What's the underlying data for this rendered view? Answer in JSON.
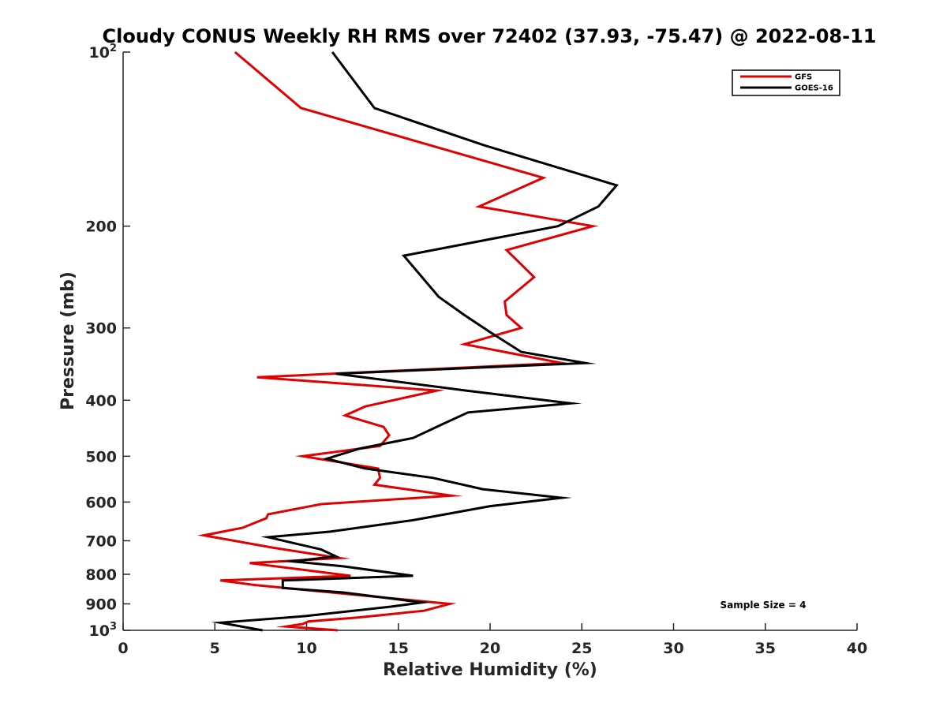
{
  "chart_data": {
    "type": "line",
    "title": "Cloudy CONUS Weekly RH RMS over 72402 (37.93, -75.47) @ 2022-08-11",
    "xlabel": "Relative Humidity (%)",
    "ylabel": "Pressure (mb)",
    "xlim": [
      0,
      40
    ],
    "ylim": [
      1000,
      100
    ],
    "yscale": "log",
    "ydirection": "reverse",
    "xticks": [
      0,
      5,
      10,
      15,
      20,
      25,
      30,
      35,
      40
    ],
    "yticks": [
      {
        "value": 100,
        "base": "10",
        "exp": "2"
      },
      {
        "value": 200,
        "label": "200"
      },
      {
        "value": 300,
        "label": "300"
      },
      {
        "value": 400,
        "label": "400"
      },
      {
        "value": 500,
        "label": "500"
      },
      {
        "value": 600,
        "label": "600"
      },
      {
        "value": 700,
        "label": "700"
      },
      {
        "value": 800,
        "label": "800"
      },
      {
        "value": 900,
        "label": "900"
      },
      {
        "value": 1000,
        "base": "10",
        "exp": "3"
      }
    ],
    "legend_position": "top-right",
    "annotation": "Sample Size = 4",
    "series": [
      {
        "name": "GFS",
        "color": "#e00000",
        "points": [
          [
            6.1,
            100
          ],
          [
            9.7,
            125
          ],
          [
            22.9,
            165
          ],
          [
            19.4,
            185
          ],
          [
            25.6,
            200
          ],
          [
            20.9,
            220
          ],
          [
            22.4,
            245
          ],
          [
            20.8,
            270
          ],
          [
            20.9,
            285
          ],
          [
            21.7,
            300
          ],
          [
            18.6,
            320
          ],
          [
            23.9,
            345
          ],
          [
            7.3,
            365
          ],
          [
            17.1,
            385
          ],
          [
            13.2,
            410
          ],
          [
            12.1,
            425
          ],
          [
            14.2,
            445
          ],
          [
            14.5,
            460
          ],
          [
            14.0,
            480
          ],
          [
            9.8,
            500
          ],
          [
            13.9,
            525
          ],
          [
            14.0,
            545
          ],
          [
            13.7,
            560
          ],
          [
            17.9,
            585
          ],
          [
            10.8,
            605
          ],
          [
            7.9,
            630
          ],
          [
            7.8,
            640
          ],
          [
            6.5,
            665
          ],
          [
            4.4,
            685
          ],
          [
            8.2,
            720
          ],
          [
            11.8,
            750
          ],
          [
            6.9,
            765
          ],
          [
            12.4,
            805
          ],
          [
            5.3,
            820
          ],
          [
            7.2,
            835
          ],
          [
            17.8,
            900
          ],
          [
            16.4,
            925
          ],
          [
            12.8,
            950
          ],
          [
            10.1,
            965
          ],
          [
            9.8,
            975
          ],
          [
            8.9,
            985
          ],
          [
            10.2,
            992
          ],
          [
            11.7,
            1000
          ]
        ]
      },
      {
        "name": "GOES-16",
        "color": "#000000",
        "points": [
          [
            11.4,
            100
          ],
          [
            13.7,
            125
          ],
          [
            19.7,
            145
          ],
          [
            26.9,
            170
          ],
          [
            25.9,
            185
          ],
          [
            23.7,
            200
          ],
          [
            15.3,
            225
          ],
          [
            17.2,
            265
          ],
          [
            18.6,
            285
          ],
          [
            20.0,
            305
          ],
          [
            21.7,
            330
          ],
          [
            25.2,
            345
          ],
          [
            11.6,
            360
          ],
          [
            18.7,
            385
          ],
          [
            24.4,
            405
          ],
          [
            18.8,
            420
          ],
          [
            17.4,
            440
          ],
          [
            15.8,
            465
          ],
          [
            12.9,
            485
          ],
          [
            11.1,
            505
          ],
          [
            13.2,
            525
          ],
          [
            16.9,
            545
          ],
          [
            19.6,
            570
          ],
          [
            23.9,
            590
          ],
          [
            20.0,
            610
          ],
          [
            15.8,
            645
          ],
          [
            11.3,
            675
          ],
          [
            7.9,
            690
          ],
          [
            10.8,
            725
          ],
          [
            11.6,
            745
          ],
          [
            9.2,
            760
          ],
          [
            12.0,
            775
          ],
          [
            15.8,
            805
          ],
          [
            8.7,
            820
          ],
          [
            8.7,
            845
          ],
          [
            12.0,
            860
          ],
          [
            16.3,
            895
          ],
          [
            14.6,
            910
          ],
          [
            9.9,
            945
          ],
          [
            5.3,
            970
          ],
          [
            7.6,
            1000
          ]
        ]
      }
    ]
  }
}
